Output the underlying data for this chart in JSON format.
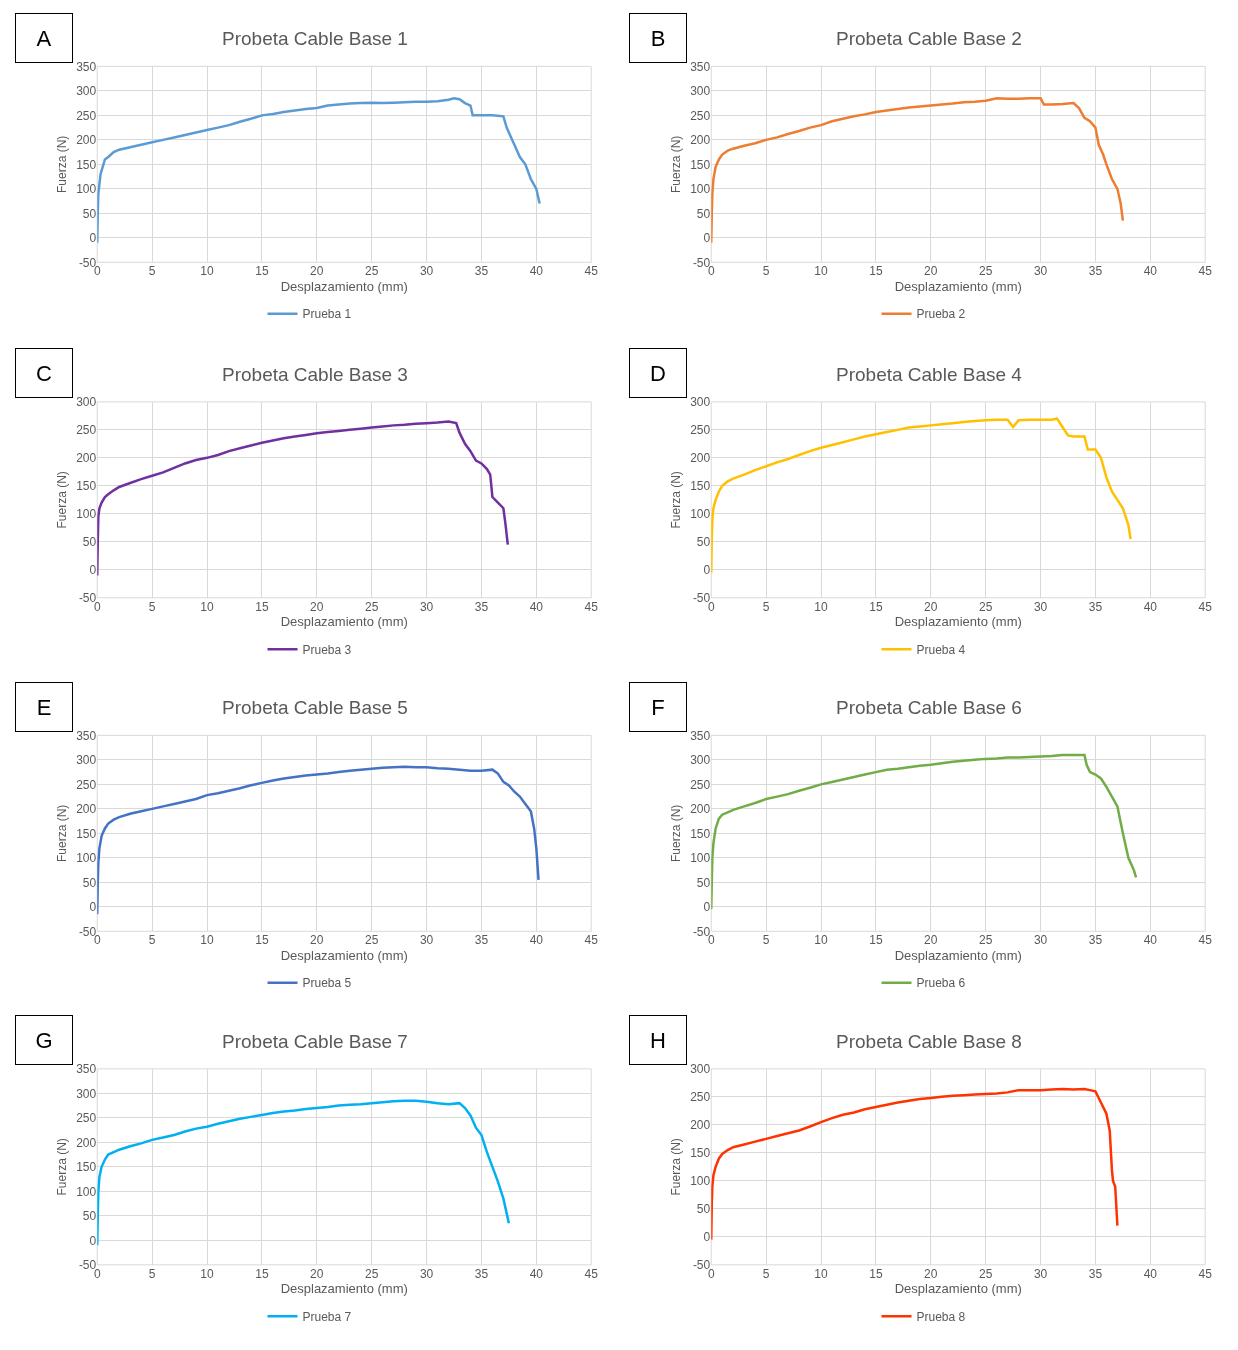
{
  "chart_data": [
    {
      "type": "line",
      "title": "Probeta Cable Base 1",
      "xlabel": "Desplazamiento (mm)",
      "ylabel": "Fuerza (N)",
      "annotations": [
        "A"
      ],
      "xlim": [
        0,
        45
      ],
      "xticks": [
        0,
        5,
        10,
        15,
        20,
        25,
        30,
        35,
        40,
        45
      ],
      "ylim": [
        -50,
        350
      ],
      "yticks": [
        -50,
        0,
        50,
        100,
        150,
        200,
        250,
        300,
        350
      ],
      "grid": true,
      "legend": "bottom",
      "series": [
        {
          "name": "Prueba 1",
          "color": "#5b9bd5",
          "x": [
            0,
            0.05,
            0.1,
            0.2,
            0.3,
            0.5,
            0.7,
            1,
            1.5,
            2,
            3,
            4,
            5,
            6,
            7,
            8,
            9,
            10,
            11,
            12,
            13,
            14,
            15,
            16,
            17,
            18,
            19,
            20,
            21,
            22,
            23,
            24,
            25,
            26,
            27,
            28,
            29,
            30,
            31,
            32,
            32.5,
            33,
            33.5,
            34,
            34.2,
            35,
            36,
            37,
            37.3,
            37.6,
            38,
            38.5,
            39,
            39.5,
            40,
            40.3
          ],
          "values": [
            -10,
            50,
            90,
            110,
            130,
            145,
            160,
            165,
            175,
            180,
            185,
            190,
            195,
            200,
            205,
            210,
            215,
            220,
            225,
            230,
            237,
            243,
            250,
            253,
            257,
            260,
            263,
            265,
            270,
            272,
            274,
            275,
            276,
            275,
            276,
            277,
            278,
            278,
            279,
            282,
            285,
            283,
            275,
            270,
            250,
            250,
            250,
            248,
            225,
            210,
            190,
            165,
            150,
            120,
            100,
            70
          ]
        }
      ]
    },
    {
      "type": "line",
      "title": "Probeta Cable Base 2",
      "xlabel": "Desplazamiento (mm)",
      "ylabel": "Fuerza (N)",
      "annotations": [
        "B"
      ],
      "xlim": [
        0,
        45
      ],
      "xticks": [
        0,
        5,
        10,
        15,
        20,
        25,
        30,
        35,
        40,
        45
      ],
      "ylim": [
        -50,
        350
      ],
      "yticks": [
        -50,
        0,
        50,
        100,
        150,
        200,
        250,
        300,
        350
      ],
      "grid": true,
      "legend": "bottom",
      "series": [
        {
          "name": "Prueba 2",
          "color": "#ed7d31",
          "x": [
            0,
            0.05,
            0.1,
            0.2,
            0.4,
            0.7,
            1,
            1.5,
            2,
            3,
            4,
            5,
            6,
            7,
            8,
            9,
            10,
            11,
            12,
            13,
            14,
            15,
            16,
            17,
            18,
            19,
            20,
            21,
            22,
            23,
            24,
            25,
            26,
            27,
            28,
            29,
            30,
            30.3,
            31,
            32,
            33,
            33.5,
            34,
            34.5,
            35,
            35.3,
            35.7,
            36,
            36.5,
            37,
            37.3,
            37.5
          ],
          "values": [
            -10,
            50,
            90,
            120,
            145,
            160,
            170,
            178,
            182,
            188,
            193,
            200,
            205,
            212,
            218,
            225,
            230,
            238,
            243,
            248,
            252,
            257,
            260,
            263,
            266,
            268,
            270,
            272,
            274,
            277,
            278,
            280,
            285,
            284,
            284,
            285,
            285,
            272,
            272,
            273,
            275,
            265,
            245,
            238,
            225,
            190,
            170,
            150,
            120,
            100,
            70,
            35
          ]
        }
      ]
    },
    {
      "type": "line",
      "title": "Probeta Cable Base 3",
      "xlabel": "Desplazamiento (mm)",
      "ylabel": "Fuerza (N)",
      "annotations": [
        "C"
      ],
      "xlim": [
        0,
        45
      ],
      "xticks": [
        0,
        5,
        10,
        15,
        20,
        25,
        30,
        35,
        40,
        45
      ],
      "ylim": [
        -50,
        300
      ],
      "yticks": [
        -50,
        0,
        50,
        100,
        150,
        200,
        250,
        300
      ],
      "grid": true,
      "legend": "bottom",
      "series": [
        {
          "name": "Prueba 3",
          "color": "#7030a0",
          "x": [
            0,
            0.05,
            0.1,
            0.2,
            0.4,
            0.7,
            1,
            1.5,
            2,
            3,
            4,
            5,
            6,
            7,
            8,
            9,
            10,
            11,
            12,
            13,
            14,
            15,
            16,
            17,
            18,
            19,
            20,
            21,
            22,
            23,
            24,
            25,
            26,
            27,
            28,
            29,
            30,
            31,
            32,
            32.7,
            33,
            33.5,
            34,
            34.5,
            35,
            35.5,
            35.8,
            36,
            36.5,
            37,
            37.2,
            37.4
          ],
          "values": [
            -10,
            50,
            95,
            110,
            120,
            130,
            135,
            142,
            148,
            155,
            162,
            168,
            174,
            182,
            190,
            196,
            200,
            205,
            212,
            217,
            222,
            227,
            231,
            235,
            238,
            241,
            244,
            246,
            248,
            250,
            252,
            254,
            256,
            258,
            259,
            261,
            262,
            263,
            265,
            262,
            245,
            225,
            212,
            195,
            190,
            180,
            170,
            130,
            120,
            110,
            80,
            45
          ]
        }
      ]
    },
    {
      "type": "line",
      "title": "Probeta Cable Base 4",
      "xlabel": "Desplazamiento (mm)",
      "ylabel": "Fuerza (N)",
      "annotations": [
        "D"
      ],
      "xlim": [
        0,
        45
      ],
      "xticks": [
        0,
        5,
        10,
        15,
        20,
        25,
        30,
        35,
        40,
        45
      ],
      "ylim": [
        -50,
        300
      ],
      "yticks": [
        -50,
        0,
        50,
        100,
        150,
        200,
        250,
        300
      ],
      "grid": true,
      "legend": "bottom",
      "series": [
        {
          "name": "Prueba 4",
          "color": "#ffc000",
          "x": [
            0,
            0.05,
            0.1,
            0.2,
            0.4,
            0.7,
            1,
            1.5,
            2,
            3,
            4,
            5,
            6,
            7,
            8,
            9,
            10,
            11,
            12,
            13,
            14,
            15,
            16,
            17,
            18,
            19,
            20,
            21,
            22,
            23,
            24,
            25,
            26,
            27,
            27.5,
            28,
            29,
            30,
            31,
            31.5,
            32,
            32.5,
            33,
            34,
            34.3,
            35,
            35.5,
            36,
            36.5,
            37,
            37.5,
            38,
            38.2
          ],
          "values": [
            -5,
            55,
            90,
            110,
            125,
            140,
            150,
            158,
            163,
            170,
            178,
            185,
            192,
            198,
            205,
            212,
            218,
            223,
            228,
            233,
            238,
            242,
            246,
            250,
            254,
            256,
            258,
            260,
            262,
            264,
            266,
            267,
            268,
            268,
            255,
            267,
            268,
            268,
            268,
            270,
            255,
            240,
            238,
            238,
            215,
            215,
            200,
            165,
            140,
            125,
            110,
            80,
            55
          ]
        }
      ]
    },
    {
      "type": "line",
      "title": "Probeta Cable Base 5",
      "xlabel": "Desplazamiento (mm)",
      "ylabel": "Fuerza (N)",
      "annotations": [
        "E"
      ],
      "xlim": [
        0,
        45
      ],
      "xticks": [
        0,
        5,
        10,
        15,
        20,
        25,
        30,
        35,
        40,
        45
      ],
      "ylim": [
        -50,
        350
      ],
      "yticks": [
        -50,
        0,
        50,
        100,
        150,
        200,
        250,
        300,
        350
      ],
      "grid": true,
      "legend": "bottom",
      "series": [
        {
          "name": "Prueba 5",
          "color": "#4472c4",
          "x": [
            0,
            0.05,
            0.1,
            0.2,
            0.4,
            0.7,
            1,
            1.5,
            2,
            3,
            4,
            5,
            6,
            7,
            8,
            9,
            10,
            11,
            12,
            13,
            14,
            15,
            16,
            17,
            18,
            19,
            20,
            21,
            22,
            23,
            24,
            25,
            26,
            27,
            28,
            29,
            30,
            31,
            32,
            33,
            34,
            35,
            36,
            36.5,
            37,
            37.5,
            38,
            38.5,
            39,
            39.5,
            39.8,
            40,
            40.2
          ],
          "values": [
            -15,
            50,
            90,
            120,
            145,
            160,
            170,
            178,
            183,
            190,
            195,
            200,
            205,
            210,
            215,
            220,
            228,
            232,
            237,
            242,
            248,
            253,
            258,
            262,
            265,
            268,
            270,
            272,
            275,
            278,
            280,
            282,
            284,
            285,
            286,
            285,
            285,
            283,
            282,
            280,
            278,
            278,
            280,
            272,
            255,
            248,
            235,
            225,
            210,
            195,
            160,
            120,
            55
          ]
        }
      ]
    },
    {
      "type": "line",
      "title": "Probeta Cable Base 6",
      "xlabel": "Desplazamiento (mm)",
      "ylabel": "Fuerza (N)",
      "annotations": [
        "F"
      ],
      "xlim": [
        0,
        45
      ],
      "xticks": [
        0,
        5,
        10,
        15,
        20,
        25,
        30,
        35,
        40,
        45
      ],
      "ylim": [
        -50,
        350
      ],
      "yticks": [
        -50,
        0,
        50,
        100,
        150,
        200,
        250,
        300,
        350
      ],
      "grid": true,
      "legend": "bottom",
      "series": [
        {
          "name": "Prueba 6",
          "color": "#70ad47",
          "x": [
            0,
            0.05,
            0.1,
            0.2,
            0.4,
            0.7,
            1,
            1.5,
            2,
            3,
            4,
            5,
            6,
            7,
            8,
            9,
            10,
            11,
            12,
            13,
            14,
            15,
            16,
            17,
            18,
            19,
            20,
            21,
            22,
            23,
            24,
            25,
            26,
            27,
            28,
            29,
            30,
            31,
            32,
            33,
            34,
            34.2,
            34.5,
            35,
            35.5,
            36,
            36.5,
            37,
            37.5,
            38,
            38.5,
            38.7
          ],
          "values": [
            -5,
            50,
            100,
            130,
            160,
            180,
            188,
            193,
            198,
            205,
            212,
            220,
            225,
            230,
            237,
            243,
            250,
            255,
            260,
            265,
            270,
            275,
            280,
            282,
            285,
            288,
            290,
            293,
            296,
            298,
            300,
            302,
            303,
            305,
            305,
            306,
            307,
            308,
            310,
            310,
            310,
            290,
            275,
            270,
            262,
            245,
            225,
            205,
            150,
            100,
            75,
            60
          ]
        }
      ]
    },
    {
      "type": "line",
      "title": "Probeta Cable Base 7",
      "xlabel": "Desplazamiento (mm)",
      "ylabel": "Fuerza (N)",
      "annotations": [
        "G"
      ],
      "xlim": [
        0,
        45
      ],
      "xticks": [
        0,
        5,
        10,
        15,
        20,
        25,
        30,
        35,
        40,
        45
      ],
      "ylim": [
        -50,
        350
      ],
      "yticks": [
        -50,
        0,
        50,
        100,
        150,
        200,
        250,
        300,
        350
      ],
      "grid": true,
      "legend": "bottom",
      "series": [
        {
          "name": "Prueba 7",
          "color": "#00b0f0",
          "x": [
            0,
            0.05,
            0.1,
            0.2,
            0.4,
            0.7,
            1,
            1.5,
            2,
            3,
            4,
            5,
            6,
            7,
            8,
            9,
            10,
            11,
            12,
            13,
            14,
            15,
            16,
            17,
            18,
            19,
            20,
            21,
            22,
            23,
            24,
            25,
            26,
            27,
            28,
            29,
            30,
            31,
            32,
            33,
            33.5,
            34,
            34.5,
            35,
            35.5,
            36,
            36.5,
            37,
            37.3,
            37.5
          ],
          "values": [
            -10,
            50,
            100,
            130,
            150,
            165,
            175,
            180,
            185,
            192,
            198,
            205,
            210,
            215,
            222,
            228,
            232,
            238,
            243,
            248,
            252,
            256,
            260,
            263,
            265,
            268,
            270,
            272,
            275,
            277,
            278,
            280,
            282,
            284,
            285,
            285,
            283,
            280,
            278,
            280,
            270,
            255,
            230,
            215,
            180,
            150,
            120,
            85,
            55,
            35
          ]
        }
      ]
    },
    {
      "type": "line",
      "title": "Probeta Cable Base 8",
      "xlabel": "Desplazamiento (mm)",
      "ylabel": "Fuerza (N)",
      "annotations": [
        "H"
      ],
      "xlim": [
        0,
        45
      ],
      "xticks": [
        0,
        5,
        10,
        15,
        20,
        25,
        30,
        35,
        40,
        45
      ],
      "ylim": [
        -50,
        300
      ],
      "yticks": [
        -50,
        0,
        50,
        100,
        150,
        200,
        250,
        300
      ],
      "grid": true,
      "legend": "bottom",
      "series": [
        {
          "name": "Prueba 8",
          "color": "#ff3300",
          "x": [
            0,
            0.05,
            0.1,
            0.2,
            0.4,
            0.7,
            1,
            1.5,
            2,
            3,
            4,
            5,
            6,
            7,
            8,
            9,
            10,
            11,
            12,
            13,
            14,
            15,
            16,
            17,
            18,
            19,
            20,
            21,
            22,
            23,
            24,
            25,
            26,
            27,
            28,
            29,
            30,
            31,
            32,
            33,
            34,
            34.5,
            35,
            35.5,
            36,
            36.3,
            36.5,
            36.6,
            36.8,
            37
          ],
          "values": [
            -5,
            60,
            90,
            110,
            125,
            140,
            148,
            155,
            160,
            165,
            170,
            175,
            180,
            185,
            190,
            197,
            205,
            212,
            218,
            222,
            228,
            232,
            236,
            240,
            243,
            246,
            248,
            250,
            252,
            253,
            254,
            255,
            256,
            258,
            262,
            262,
            262,
            263,
            264,
            263,
            264,
            262,
            260,
            240,
            220,
            190,
            120,
            100,
            90,
            20
          ]
        }
      ]
    }
  ]
}
